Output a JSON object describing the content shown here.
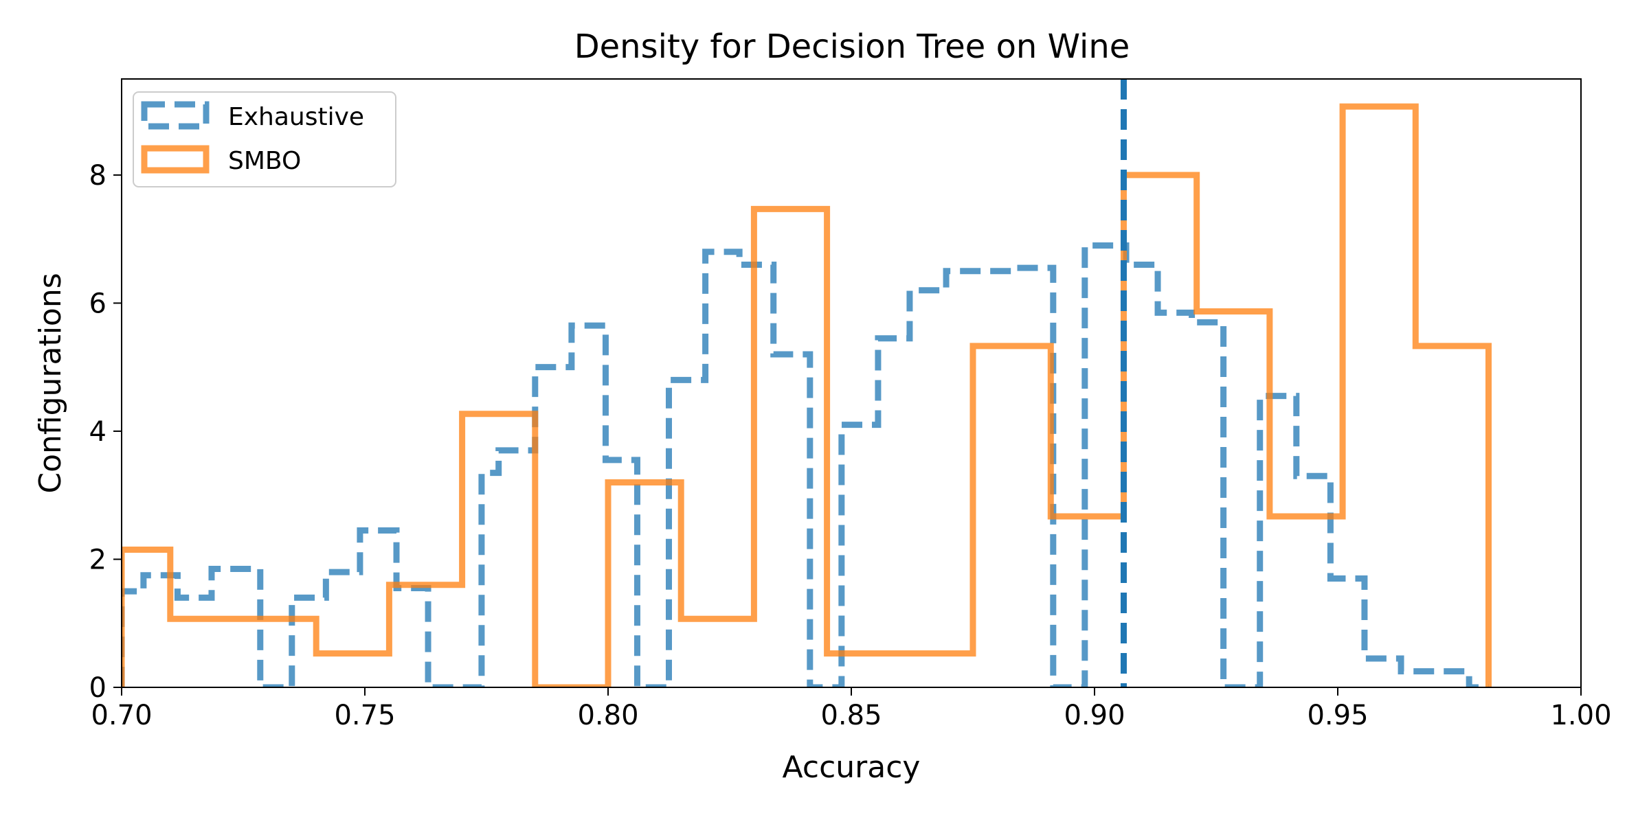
{
  "chart_data": {
    "type": "histogram",
    "title": "Density for Decision Tree on Wine",
    "xlabel": "Accuracy",
    "ylabel": "Configurations",
    "xlim": [
      0.7,
      1.0
    ],
    "ylim": [
      0,
      9.5
    ],
    "xticks": [
      0.7,
      0.75,
      0.8,
      0.85,
      0.9,
      0.95,
      1.0
    ],
    "xtick_labels": [
      "0.70",
      "0.75",
      "0.80",
      "0.85",
      "0.90",
      "0.95",
      "1.00"
    ],
    "yticks": [
      0,
      2,
      4,
      6,
      8
    ],
    "ytick_labels": [
      "0",
      "2",
      "4",
      "6",
      "8"
    ],
    "grid": false,
    "legend_position": "top-left",
    "series": [
      {
        "name": "Exhaustive",
        "style": "dashed step outline",
        "color": "#1f77b4",
        "bin_edges": [
          0.7,
          0.7045,
          0.7115,
          0.7185,
          0.7285,
          0.735,
          0.742,
          0.749,
          0.7565,
          0.763,
          0.77,
          0.774,
          0.7775,
          0.785,
          0.7925,
          0.7995,
          0.806,
          0.8125,
          0.82,
          0.827,
          0.834,
          0.8415,
          0.848,
          0.8555,
          0.862,
          0.8695,
          0.877,
          0.884,
          0.8915,
          0.898,
          0.9065,
          0.913,
          0.92,
          0.9265,
          0.934,
          0.9415,
          0.9485,
          0.9555,
          0.963,
          0.97,
          0.977,
          0.981
        ],
        "values": [
          1.5,
          1.75,
          1.4,
          1.85,
          0.0,
          1.4,
          1.8,
          2.45,
          1.55,
          0.0,
          0.0,
          3.35,
          3.7,
          5.0,
          5.65,
          3.55,
          0.0,
          4.8,
          6.8,
          6.6,
          5.2,
          0.0,
          4.1,
          5.45,
          6.2,
          6.5,
          6.5,
          6.55,
          0.0,
          6.9,
          6.6,
          5.85,
          5.7,
          0.0,
          4.55,
          3.3,
          1.7,
          0.45,
          0.25,
          0.25,
          0.0
        ]
      },
      {
        "name": "SMBO",
        "style": "solid step outline",
        "color": "#ff7f0e",
        "bin_edges": [
          0.7,
          0.71,
          0.725,
          0.74,
          0.755,
          0.77,
          0.785,
          0.8,
          0.815,
          0.83,
          0.845,
          0.86,
          0.875,
          0.891,
          0.906,
          0.921,
          0.936,
          0.951,
          0.966,
          0.981
        ],
        "values": [
          2.15,
          1.07,
          1.07,
          0.53,
          1.6,
          4.27,
          0.0,
          3.2,
          1.07,
          7.47,
          0.53,
          0.53,
          5.33,
          2.67,
          8.0,
          5.87,
          2.67,
          9.07,
          5.33
        ]
      }
    ],
    "vertical_line": {
      "x": 0.906,
      "color": "#1f77b4",
      "style": "dashed"
    }
  }
}
